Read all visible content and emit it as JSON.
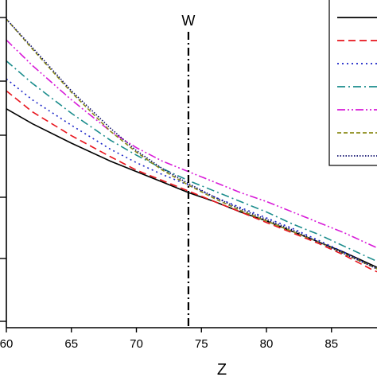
{
  "chart_data": {
    "type": "line",
    "xlabel": "Z",
    "xlim": [
      60,
      88.5
    ],
    "ylim": [
      0,
      1
    ],
    "x_ticks": [
      "60",
      "65",
      "70",
      "75",
      "80",
      "85"
    ],
    "x_tick_values": [
      60,
      65,
      70,
      75,
      80,
      85
    ],
    "y_tick_count": 5,
    "grid": false,
    "legend": {
      "placement": "top-right",
      "entries": 7
    },
    "vline": {
      "x": 74,
      "label": "W"
    },
    "series": [
      {
        "color": "#000000",
        "dash": "solid",
        "x": [
          60,
          62,
          65,
          68,
          70,
          72,
          74,
          76,
          78,
          80,
          82,
          84,
          86,
          88,
          88.5
        ],
        "y": [
          0.7,
          0.65,
          0.585,
          0.525,
          0.49,
          0.455,
          0.42,
          0.39,
          0.355,
          0.325,
          0.29,
          0.255,
          0.22,
          0.18,
          0.17
        ]
      },
      {
        "color": "#e8141c",
        "dash": "dash",
        "x": [
          60,
          62,
          65,
          68,
          70,
          72,
          74,
          76,
          78,
          80,
          82,
          84,
          86,
          88,
          88.5
        ],
        "y": [
          0.76,
          0.69,
          0.61,
          0.54,
          0.495,
          0.46,
          0.425,
          0.39,
          0.355,
          0.32,
          0.285,
          0.25,
          0.21,
          0.165,
          0.155
        ]
      },
      {
        "color": "#1a24c8",
        "dash": "dot",
        "x": [
          60,
          62,
          65,
          68,
          70,
          72,
          74,
          76,
          78,
          80,
          82,
          84,
          86,
          88,
          88.5
        ],
        "y": [
          0.8,
          0.73,
          0.645,
          0.565,
          0.52,
          0.48,
          0.445,
          0.405,
          0.37,
          0.335,
          0.3,
          0.26,
          0.22,
          0.175,
          0.165
        ]
      },
      {
        "color": "#1a8c8c",
        "dash": "dashdot",
        "x": [
          60,
          62,
          65,
          68,
          70,
          72,
          74,
          76,
          78,
          80,
          82,
          84,
          86,
          88,
          88.5
        ],
        "y": [
          0.86,
          0.785,
          0.685,
          0.595,
          0.545,
          0.5,
          0.46,
          0.425,
          0.39,
          0.355,
          0.315,
          0.28,
          0.24,
          0.2,
          0.19
        ]
      },
      {
        "color": "#d81ad8",
        "dash": "dashdotdot",
        "x": [
          60,
          62,
          65,
          68,
          70,
          72,
          74,
          76,
          78,
          80,
          82,
          84,
          86,
          88,
          88.5
        ],
        "y": [
          0.93,
          0.845,
          0.73,
          0.625,
          0.57,
          0.525,
          0.49,
          0.455,
          0.42,
          0.39,
          0.355,
          0.32,
          0.285,
          0.245,
          0.235
        ]
      },
      {
        "color": "#8c8c1a",
        "dash": "shortdash",
        "x": [
          60,
          62,
          65,
          68,
          70,
          72,
          74,
          76,
          78,
          80,
          82,
          84,
          86,
          88,
          88.5
        ],
        "y": [
          1.0,
          0.9,
          0.755,
          0.625,
          0.555,
          0.495,
          0.445,
          0.4,
          0.36,
          0.325,
          0.29,
          0.255,
          0.215,
          0.175,
          0.165
        ]
      },
      {
        "color": "#10106e",
        "dash": "shortdot",
        "x": [
          60,
          62,
          65,
          68,
          70,
          72,
          74,
          76,
          78,
          80,
          82,
          84,
          86,
          88,
          88.5
        ],
        "y": [
          1.0,
          0.905,
          0.76,
          0.635,
          0.56,
          0.5,
          0.45,
          0.405,
          0.365,
          0.33,
          0.295,
          0.255,
          0.215,
          0.175,
          0.165
        ]
      }
    ]
  }
}
